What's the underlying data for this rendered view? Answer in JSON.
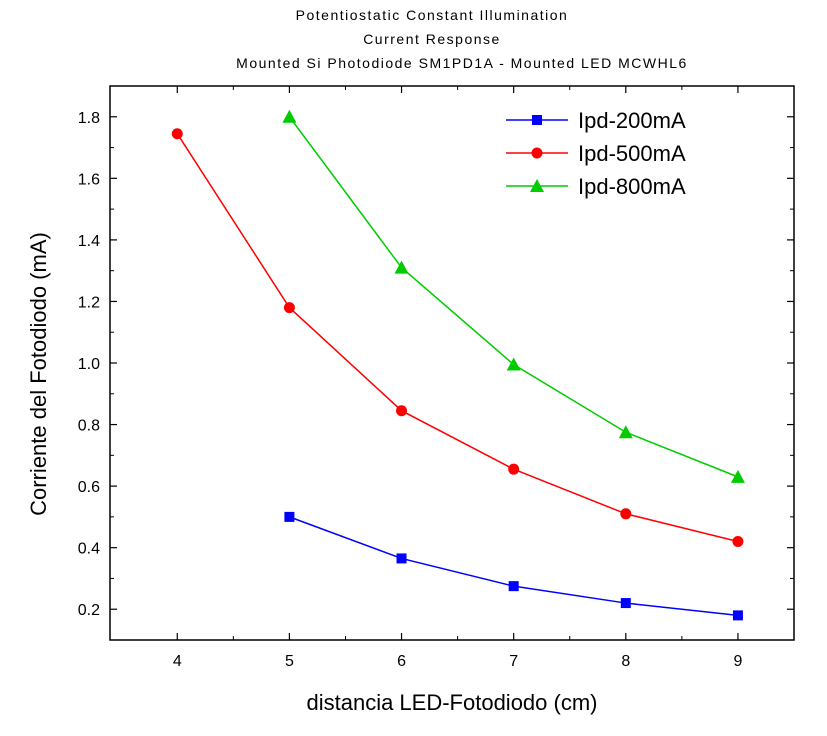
{
  "chart_data": {
    "type": "line",
    "title_lines": [
      "Potentiostatic Constant Illumination",
      "Current Response",
      "Mounted Si Photodiode SM1PD1A - Mounted LED MCWHL6"
    ],
    "xlabel": "distancia LED-Fotodiodo (cm)",
    "ylabel": "Corriente del Fotodiodo (mA)",
    "xlim": [
      3.4,
      9.5
    ],
    "ylim": [
      0.1,
      1.9
    ],
    "x_ticks": [
      4,
      5,
      6,
      7,
      8,
      9
    ],
    "y_ticks": [
      0.2,
      0.4,
      0.6,
      0.8,
      1.0,
      1.2,
      1.4,
      1.6,
      1.8
    ],
    "x_tick_labels": [
      "4",
      "5",
      "6",
      "7",
      "8",
      "9"
    ],
    "y_tick_labels": [
      "0.2",
      "0.4",
      "0.6",
      "0.8",
      "1.0",
      "1.2",
      "1.4",
      "1.6",
      "1.8"
    ],
    "grid": false,
    "legend_position": "top-right",
    "series": [
      {
        "name": "Ipd-200mA",
        "color": "#0000ff",
        "marker": "square",
        "x": [
          5,
          6,
          7,
          8,
          9
        ],
        "y": [
          0.5,
          0.365,
          0.275,
          0.22,
          0.18
        ]
      },
      {
        "name": "Ipd-500mA",
        "color": "#ff0000",
        "marker": "circle",
        "x": [
          4,
          5,
          6,
          7,
          8,
          9
        ],
        "y": [
          1.745,
          1.18,
          0.845,
          0.655,
          0.51,
          0.42
        ]
      },
      {
        "name": "Ipd-800mA",
        "color": "#00cc00",
        "marker": "triangle",
        "x": [
          5,
          6,
          7,
          8,
          9
        ],
        "y": [
          1.8,
          1.31,
          0.995,
          0.775,
          0.63
        ]
      }
    ]
  }
}
